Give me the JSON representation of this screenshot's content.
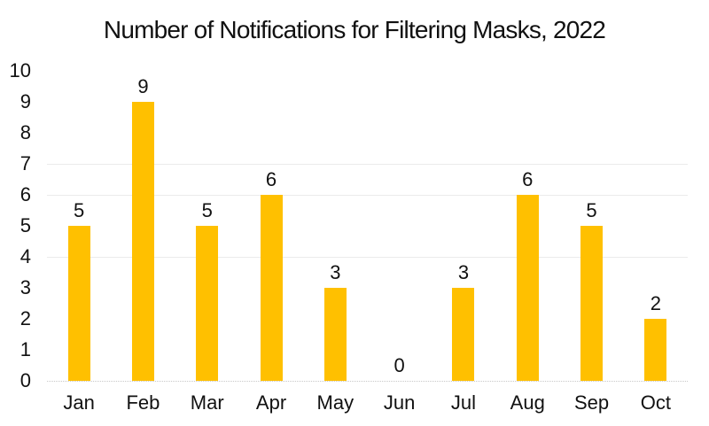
{
  "chart_data": {
    "type": "bar",
    "title": "Number of Notifications for Filtering Masks, 2022",
    "categories": [
      "Jan",
      "Feb",
      "Mar",
      "Apr",
      "May",
      "Jun",
      "Jul",
      "Aug",
      "Sep",
      "Oct"
    ],
    "values": [
      5,
      9,
      5,
      6,
      3,
      0,
      3,
      6,
      5,
      2
    ],
    "data_labels": [
      "5",
      "9",
      "5",
      "6",
      "3",
      "0",
      "3",
      "6",
      "5",
      "2"
    ],
    "xlabel": "",
    "ylabel": "",
    "ylim": [
      0,
      10
    ],
    "yticks": [
      0,
      1,
      2,
      3,
      4,
      5,
      6,
      7,
      8,
      9,
      10
    ],
    "visible_gridlines": [
      4,
      6,
      7
    ],
    "legend": "none",
    "bar_color": "#FFC000",
    "grid_color": "#EBEBEB",
    "axis_line_color": "#C8C8C8",
    "text_color": "#111111"
  }
}
